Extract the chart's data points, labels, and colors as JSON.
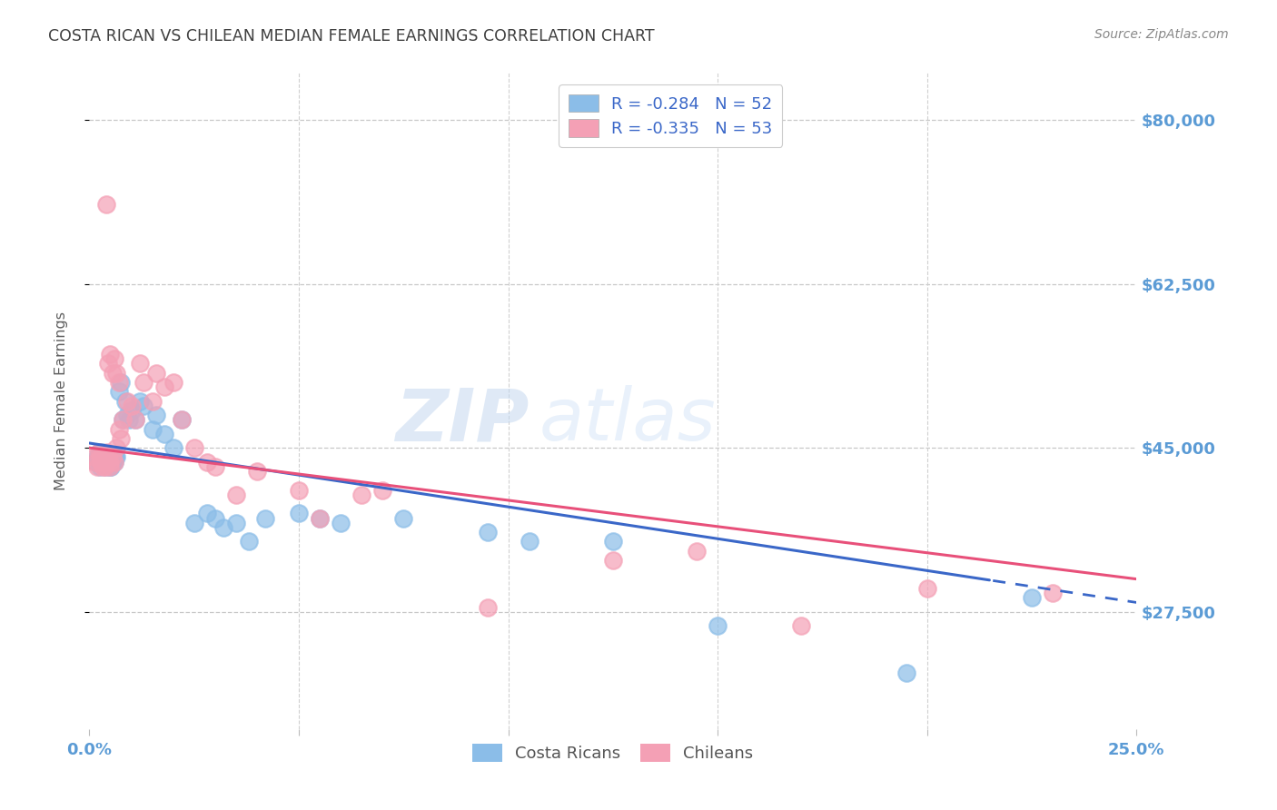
{
  "title": "COSTA RICAN VS CHILEAN MEDIAN FEMALE EARNINGS CORRELATION CHART",
  "source": "Source: ZipAtlas.com",
  "ylabel": "Median Female Earnings",
  "yticks": [
    27500,
    45000,
    62500,
    80000
  ],
  "ytick_labels": [
    "$27,500",
    "$45,000",
    "$62,500",
    "$80,000"
  ],
  "xmin": 0.0,
  "xmax": 25.0,
  "ymin": 15000,
  "ymax": 85000,
  "legend_entry1": "R = -0.284   N = 52",
  "legend_entry2": "R = -0.335   N = 53",
  "legend_label1": "Costa Ricans",
  "legend_label2": "Chileans",
  "blue_color": "#8bbde8",
  "pink_color": "#f4a0b5",
  "blue_line_color": "#3a67c8",
  "pink_line_color": "#e8507a",
  "axis_label_color": "#5b9bd5",
  "title_color": "#404040",
  "source_color": "#888888",
  "costa_rican_x": [
    0.15,
    0.18,
    0.22,
    0.25,
    0.28,
    0.3,
    0.32,
    0.35,
    0.38,
    0.4,
    0.42,
    0.45,
    0.48,
    0.5,
    0.52,
    0.55,
    0.58,
    0.6,
    0.62,
    0.65,
    0.7,
    0.75,
    0.8,
    0.85,
    0.9,
    0.95,
    1.0,
    1.1,
    1.2,
    1.3,
    1.5,
    1.6,
    1.8,
    2.0,
    2.2,
    2.5,
    2.8,
    3.0,
    3.2,
    3.5,
    3.8,
    4.2,
    5.0,
    5.5,
    6.0,
    7.5,
    9.5,
    10.5,
    12.5,
    15.0,
    19.5,
    22.5
  ],
  "costa_rican_y": [
    43500,
    44000,
    44500,
    43000,
    44000,
    44500,
    43500,
    44000,
    43000,
    43500,
    44000,
    43500,
    43000,
    43500,
    43000,
    43500,
    44000,
    43500,
    44000,
    44000,
    51000,
    52000,
    48000,
    50000,
    48500,
    48000,
    49000,
    48000,
    50000,
    49500,
    47000,
    48500,
    46500,
    45000,
    48000,
    37000,
    38000,
    37500,
    36500,
    37000,
    35000,
    37500,
    38000,
    37500,
    37000,
    37500,
    36000,
    35000,
    35000,
    26000,
    21000,
    29000
  ],
  "chilean_x": [
    0.12,
    0.15,
    0.18,
    0.22,
    0.25,
    0.28,
    0.3,
    0.32,
    0.35,
    0.38,
    0.4,
    0.42,
    0.45,
    0.48,
    0.5,
    0.55,
    0.6,
    0.65,
    0.7,
    0.75,
    0.8,
    0.9,
    1.0,
    1.1,
    1.2,
    1.3,
    1.5,
    1.6,
    1.8,
    2.0,
    2.2,
    2.5,
    2.8,
    3.0,
    3.5,
    4.0,
    5.0,
    5.5,
    6.5,
    7.0,
    9.5,
    12.5,
    14.5,
    17.0,
    20.0,
    23.0,
    0.4,
    0.45,
    0.5,
    0.55,
    0.6,
    0.65,
    0.7
  ],
  "chilean_y": [
    44000,
    43500,
    43000,
    44500,
    44000,
    43500,
    44000,
    43000,
    43500,
    43000,
    44000,
    44500,
    44000,
    43500,
    43000,
    44000,
    43500,
    45000,
    47000,
    46000,
    48000,
    50000,
    49500,
    48000,
    54000,
    52000,
    50000,
    53000,
    51500,
    52000,
    48000,
    45000,
    43500,
    43000,
    40000,
    42500,
    40500,
    37500,
    40000,
    40500,
    28000,
    33000,
    34000,
    26000,
    30000,
    29500,
    71000,
    54000,
    55000,
    53000,
    54500,
    53000,
    52000
  ]
}
